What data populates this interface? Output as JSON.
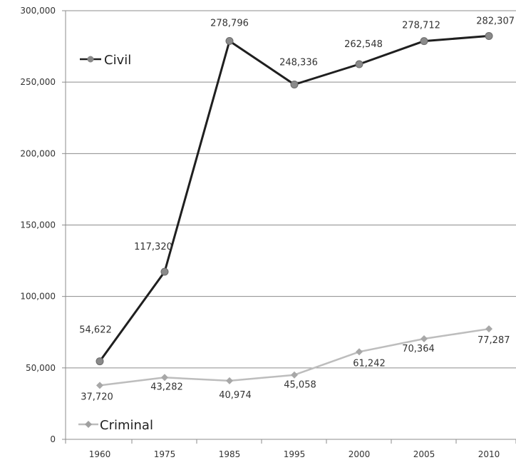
{
  "chart_data": {
    "type": "line",
    "categories": [
      "1960",
      "1975",
      "1985",
      "1995",
      "2000",
      "2005",
      "2010"
    ],
    "ylim": [
      0,
      300000
    ],
    "yticks": [
      "0",
      "50,000",
      "100,000",
      "150,000",
      "200,000",
      "250,000",
      "300,000"
    ],
    "grid": true,
    "legend": "inline",
    "series": [
      {
        "name": "Civil",
        "color": "#1f1f1f",
        "values": [
          54622,
          117320,
          278796,
          248336,
          262548,
          278712,
          282307
        ],
        "labels": [
          "54,622",
          "117,320",
          "278,796",
          "248,336",
          "262,548",
          "278,712",
          "282,307"
        ]
      },
      {
        "name": "Criminal",
        "color": "#bdbdbd",
        "values": [
          37720,
          43282,
          40974,
          45058,
          61242,
          70364,
          77287
        ],
        "labels": [
          "37,720",
          "43,282",
          "40,974",
          "45,058",
          "61,242",
          "70,364",
          "77,287"
        ]
      }
    ]
  }
}
